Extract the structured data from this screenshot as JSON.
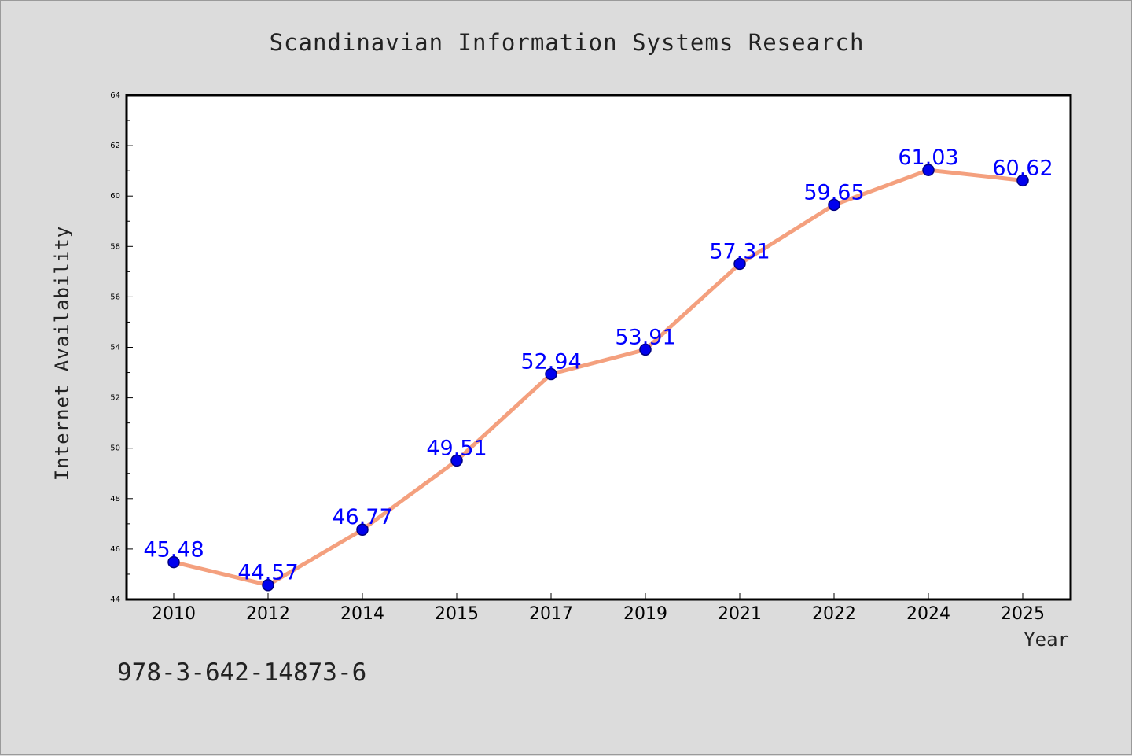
{
  "chart_data": {
    "type": "line",
    "title": "Scandinavian Information Systems Research",
    "xlabel": "Year",
    "ylabel": "Internet Availability",
    "categories": [
      "2010",
      "2012",
      "2014",
      "2015",
      "2017",
      "2019",
      "2021",
      "2022",
      "2024",
      "2025"
    ],
    "values": [
      45.48,
      44.57,
      46.77,
      49.51,
      52.94,
      53.91,
      57.31,
      59.65,
      61.03,
      60.62
    ],
    "value_labels": [
      "45.48",
      "44.57",
      "46.77",
      "49.51",
      "52.94",
      "53.91",
      "57.31",
      "59.65",
      "61.03",
      "60.62"
    ],
    "ylim": [
      44,
      64
    ],
    "yticks": [
      44,
      46,
      48,
      50,
      52,
      54,
      56,
      58,
      60,
      62,
      64
    ],
    "grid": false,
    "legend": "none",
    "colors": {
      "line": "#f4a07e",
      "marker": "#0000ee",
      "marker_edge": "#000080",
      "value_label": "#0000ff",
      "background": "#dcdcdc",
      "plot_background": "#ffffff"
    }
  },
  "footer": {
    "isbn": "978-3-642-14873-6"
  }
}
